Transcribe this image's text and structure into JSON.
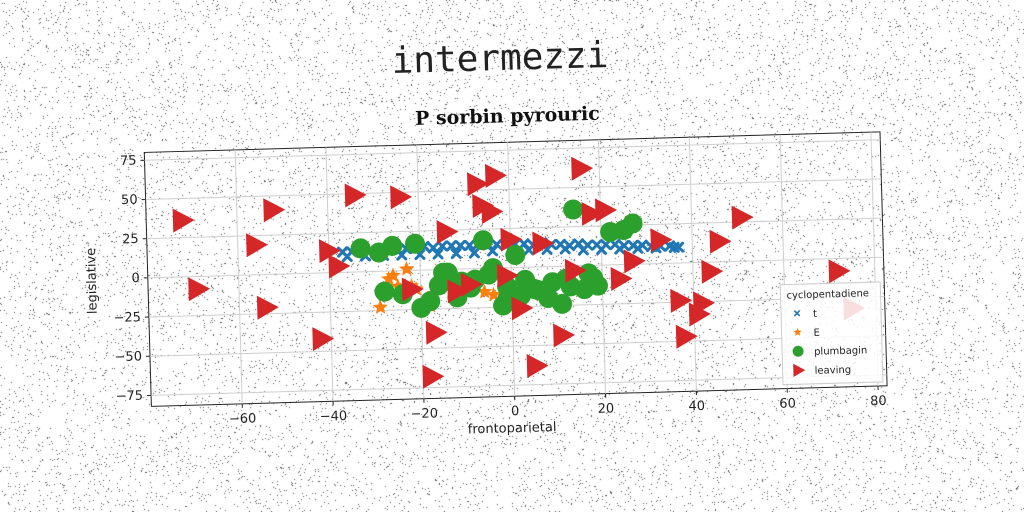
{
  "page_title": "intermezzi",
  "colors": {
    "t": "#1f77b4",
    "E": "#ff7f0e",
    "plumbagin": "#2ca02c",
    "leaving": "#d62728"
  },
  "chart_data": {
    "type": "scatter",
    "title": "P sorbin pyrouric",
    "xlabel": "frontoparietal",
    "ylabel": "legislative",
    "xlim": [
      -80,
      82
    ],
    "ylim": [
      -82,
      80
    ],
    "xticks": [
      -60,
      -40,
      -20,
      0,
      20,
      40,
      60,
      80
    ],
    "yticks": [
      -75,
      -50,
      -25,
      0,
      25,
      50,
      75
    ],
    "grid": true,
    "legend": {
      "title": "cyclopentadiene",
      "position": "lower-right"
    },
    "series": [
      {
        "name": "t",
        "marker": "x",
        "x": [
          -37,
          -35,
          -33,
          -31,
          -29,
          -27,
          -25,
          -23,
          -21,
          -19,
          -17,
          -15,
          -13,
          -11,
          -9,
          -7,
          -5,
          -3,
          -1,
          1,
          3,
          5,
          7,
          9,
          11,
          13,
          15,
          17,
          19,
          21,
          23,
          25,
          27,
          29,
          31,
          33,
          35,
          37,
          -36,
          -32,
          -28,
          -24,
          -20,
          -16,
          -12,
          -8,
          -4,
          0,
          4,
          8,
          12,
          16,
          20,
          24,
          28,
          32,
          36
        ],
        "y": [
          13,
          13,
          14,
          13,
          14,
          13,
          14,
          14,
          14,
          15,
          14,
          15,
          15,
          15,
          15,
          16,
          15,
          15,
          15,
          15,
          15,
          14,
          15,
          14,
          14,
          13,
          14,
          13,
          13,
          13,
          13,
          12,
          12,
          12,
          11,
          11,
          11,
          10,
          10,
          10,
          10,
          10,
          10,
          10,
          10,
          10,
          11,
          11,
          11,
          11,
          11,
          10,
          10,
          10,
          10,
          10,
          10
        ]
      },
      {
        "name": "E",
        "marker": "star",
        "x": [
          -29,
          -27,
          -25,
          -23,
          -21,
          -19,
          -17,
          -14,
          -12,
          -10,
          -6,
          -4,
          -26,
          -22,
          -18
        ],
        "y": [
          -23,
          -5,
          -10,
          1,
          -12,
          -20,
          -15,
          -5,
          -13,
          -8,
          -15,
          -17,
          -3,
          -10,
          -23
        ]
      },
      {
        "name": "plumbagin",
        "marker": "circle",
        "x": [
          -33,
          -29,
          -26,
          -21,
          -18,
          -14,
          -11,
          -8,
          -6,
          -4,
          -1,
          1,
          5,
          8,
          11,
          13,
          14,
          16,
          18,
          19,
          22,
          25,
          27,
          -28,
          -24,
          -20,
          -16,
          -12,
          -9,
          -5,
          -2,
          2,
          6,
          9,
          12,
          17,
          3,
          -1,
          -15
        ],
        "y": [
          15,
          12,
          16,
          17,
          -20,
          -2,
          -8,
          -7,
          18,
          0,
          -12,
          8,
          -14,
          -20,
          -24,
          -13,
          36,
          -15,
          -8,
          -13,
          21,
          22,
          26,
          -13,
          -15,
          -24,
          -10,
          -18,
          -12,
          -4,
          -24,
          -18,
          -15,
          -10,
          -8,
          -5,
          -8,
          -20,
          -2
        ],
        "sizes": "large"
      },
      {
        "name": "leaving",
        "marker": "triangle-right",
        "x": [
          -72,
          -69,
          -52,
          -56,
          -54,
          -40,
          -42,
          -38,
          -34,
          -24,
          -22,
          -18,
          -17,
          -12,
          -9,
          -7,
          -6,
          -4,
          -3,
          0,
          2,
          5,
          7,
          11,
          14,
          16,
          18,
          21,
          24,
          27,
          33,
          37,
          38,
          41,
          42,
          44,
          46,
          51,
          72,
          75,
          -14,
          -1
        ],
        "y": [
          36,
          -8,
          41,
          19,
          -21,
          14,
          -42,
          4,
          49,
          47,
          -12,
          -68,
          -40,
          -14,
          -10,
          54,
          40,
          36,
          59,
          18,
          -26,
          -63,
          15,
          -44,
          -3,
          62,
          33,
          35,
          -9,
          2,
          15,
          -24,
          -47,
          -33,
          -26,
          -6,
          13,
          28,
          -8,
          -32,
          24,
          -5
        ]
      }
    ]
  }
}
